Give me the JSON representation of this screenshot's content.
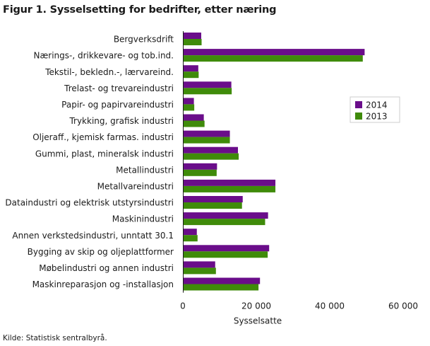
{
  "title": "Figur 1. Sysselsetting for bedrifter, etter næring",
  "source": "Kilde: Statistisk sentralbyrå.",
  "chart_data": {
    "type": "bar",
    "orientation": "horizontal",
    "categories": [
      "Bergverksdrift",
      "Nærings-, drikkevare- og tob.ind.",
      "Tekstil-, bekledn.-, lærvareind.",
      "Trelast- og trevareindustri",
      "Papir- og papirvareindustri",
      "Trykking, grafisk industri",
      "Oljeraff., kjemisk farmas. industri",
      "Gummi, plast, mineralsk industri",
      "Metallindustri",
      "Metallvareindustri",
      "Dataindustri og elektrisk utstyrsindustri",
      "Maskinindustri",
      "Annen verkstedsindustri, unntatt 30.1",
      "Bygging av skip og oljeplattformer",
      "Møbelindustri og annen industri",
      "Maskinreparasjon og -installasjon"
    ],
    "series": [
      {
        "name": "2014",
        "color": "#6a0d8a",
        "values": [
          5000,
          49500,
          4200,
          13200,
          3000,
          5700,
          12800,
          15000,
          9300,
          25200,
          16300,
          23200,
          3800,
          23500,
          8800,
          21000
        ]
      },
      {
        "name": "2013",
        "color": "#3f8b0a",
        "values": [
          5100,
          49000,
          4300,
          13300,
          3100,
          5900,
          12800,
          15200,
          9200,
          25200,
          16100,
          22400,
          4000,
          23100,
          9000,
          20600
        ]
      }
    ],
    "xlabel": "Sysselsatte",
    "xlim": [
      0,
      60000
    ],
    "xticks": [
      0,
      20000,
      40000,
      60000
    ],
    "xtick_labels": [
      "0",
      "20 000",
      "40 000",
      "60 000"
    ],
    "legend_position": "right",
    "grid": false
  }
}
